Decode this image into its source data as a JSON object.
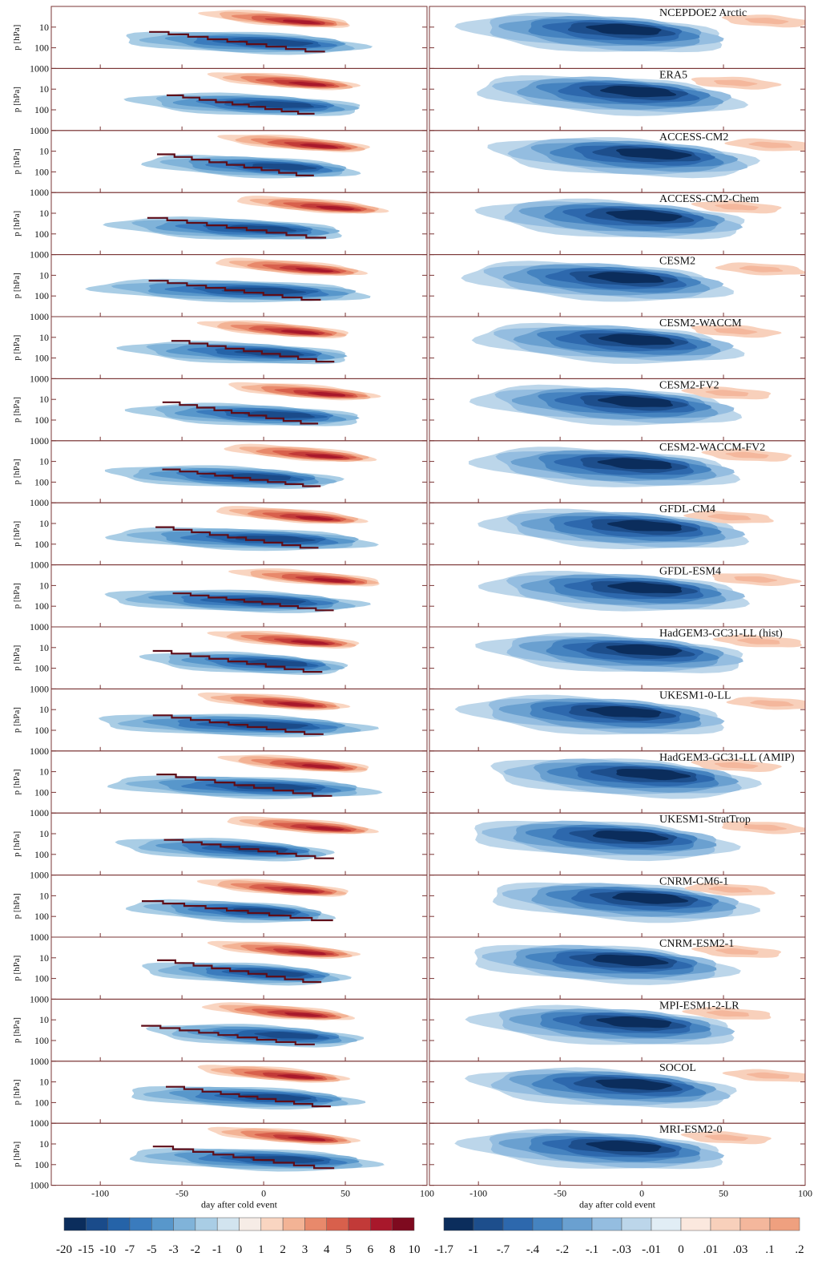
{
  "chart_data": {
    "type": "contour",
    "xlabel": "day after cold event",
    "ylabel": "p [hPa]",
    "xlim": [
      -130,
      100
    ],
    "xticks": [
      -100,
      -50,
      0,
      50,
      100
    ],
    "ylim": [
      1000,
      1
    ],
    "yticks": [
      10,
      100,
      1000
    ],
    "log_y": true,
    "panels": [
      "NCEPDOE2 Arctic",
      "ERA5",
      "ACCESS-CM2",
      "ACCESS-CM2-Chem",
      "CESM2",
      "CESM2-WACCM",
      "CESM2-FV2",
      "CESM2-WACCM-FV2",
      "GFDL-CM4",
      "GFDL-ESM4",
      "HadGEM3-GC31-LL (hist)",
      "UKESM1-0-LL",
      "HadGEM3-GC31-LL (AMIP)",
      "UKESM1-StratTrop",
      "CNRM-CM6-1",
      "CNRM-ESM2-1",
      "MPI-ESM1-2-LR",
      "SOCOL",
      "MRI-ESM2-0"
    ],
    "colorbars": [
      {
        "ticks": [
          -20,
          -15,
          -10,
          -7,
          -5,
          -3,
          -2,
          -1,
          0,
          1,
          2,
          3,
          4,
          5,
          6,
          8,
          10
        ],
        "colors": [
          "#0b2d5c",
          "#1a4b8a",
          "#2563a8",
          "#3a7bbd",
          "#5897cb",
          "#80b3d9",
          "#a9cde5",
          "#d2e4ef",
          "#f6ece6",
          "#f9d5c1",
          "#f3b395",
          "#e8896b",
          "#d8604c",
          "#c23a38",
          "#a8182b",
          "#7e0a1f"
        ]
      },
      {
        "ticks": [
          -1.7,
          -1,
          {
            "value": -0.7,
            "label": "-.7"
          },
          {
            "value": -0.4,
            "label": "-.4"
          },
          {
            "value": -0.2,
            "label": "-.2"
          },
          {
            "value": -0.1,
            "label": "-.1"
          },
          {
            "value": -0.03,
            "label": "-.03"
          },
          {
            "value": -0.01,
            "label": "-.01"
          },
          0,
          {
            "value": 0.01,
            "label": ".01"
          },
          {
            "value": 0.03,
            "label": ".03"
          },
          {
            "value": 0.1,
            "label": ".1"
          },
          {
            "value": 0.2,
            "label": ".2"
          }
        ],
        "colors": [
          "#0b2d5c",
          "#1d4e8c",
          "#2d68ad",
          "#4583c0",
          "#6aa0d0",
          "#94bde0",
          "#bcd6ea",
          "#e1edf5",
          "#fbe8de",
          "#f8d0bb",
          "#f4b79c",
          "#efa07f"
        ]
      }
    ]
  }
}
